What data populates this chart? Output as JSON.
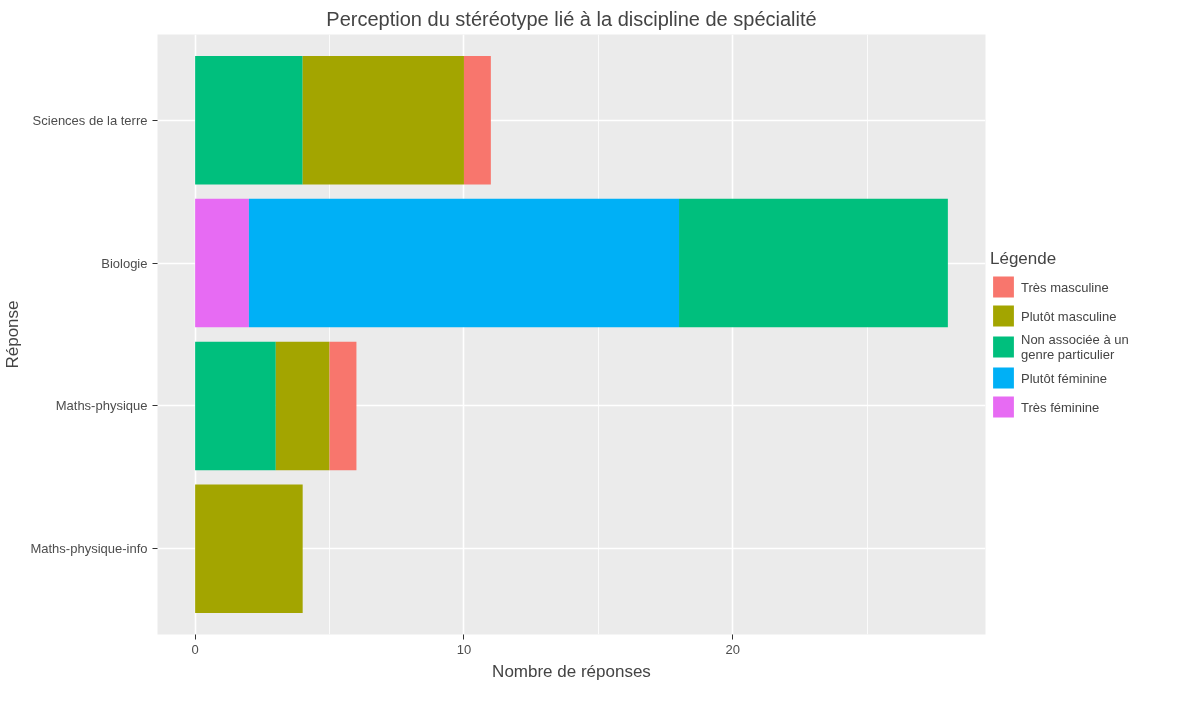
{
  "chart_data": {
    "type": "bar",
    "orientation": "horizontal",
    "stacked": true,
    "title": "Perception du stéréotype lié à la discipline de spécialité",
    "xlabel": "Nombre de réponses",
    "ylabel": "Réponse",
    "legend_title": "Légende",
    "categories": [
      "Sciences de la terre",
      "Biologie",
      "Maths-physique",
      "Maths-physique-info"
    ],
    "series": [
      {
        "name": "Très féminine",
        "color": "#e76bf3",
        "values": [
          null,
          2,
          null,
          null
        ]
      },
      {
        "name": "Plutôt féminine",
        "color": "#00b0f6",
        "values": [
          null,
          16,
          null,
          null
        ]
      },
      {
        "name": "Non associée à un genre particulier",
        "color": "#00bf7d",
        "values": [
          4,
          10,
          3,
          null
        ]
      },
      {
        "name": "Plutôt masculine",
        "color": "#a3a500",
        "values": [
          6,
          null,
          2,
          4
        ]
      },
      {
        "name": "Très masculine",
        "color": "#f8766d",
        "values": [
          1,
          null,
          1,
          null
        ]
      }
    ],
    "xlim": [
      -1.4,
      29.4
    ],
    "xticks": [
      0,
      10,
      20
    ],
    "grid": true,
    "legend": "right"
  }
}
